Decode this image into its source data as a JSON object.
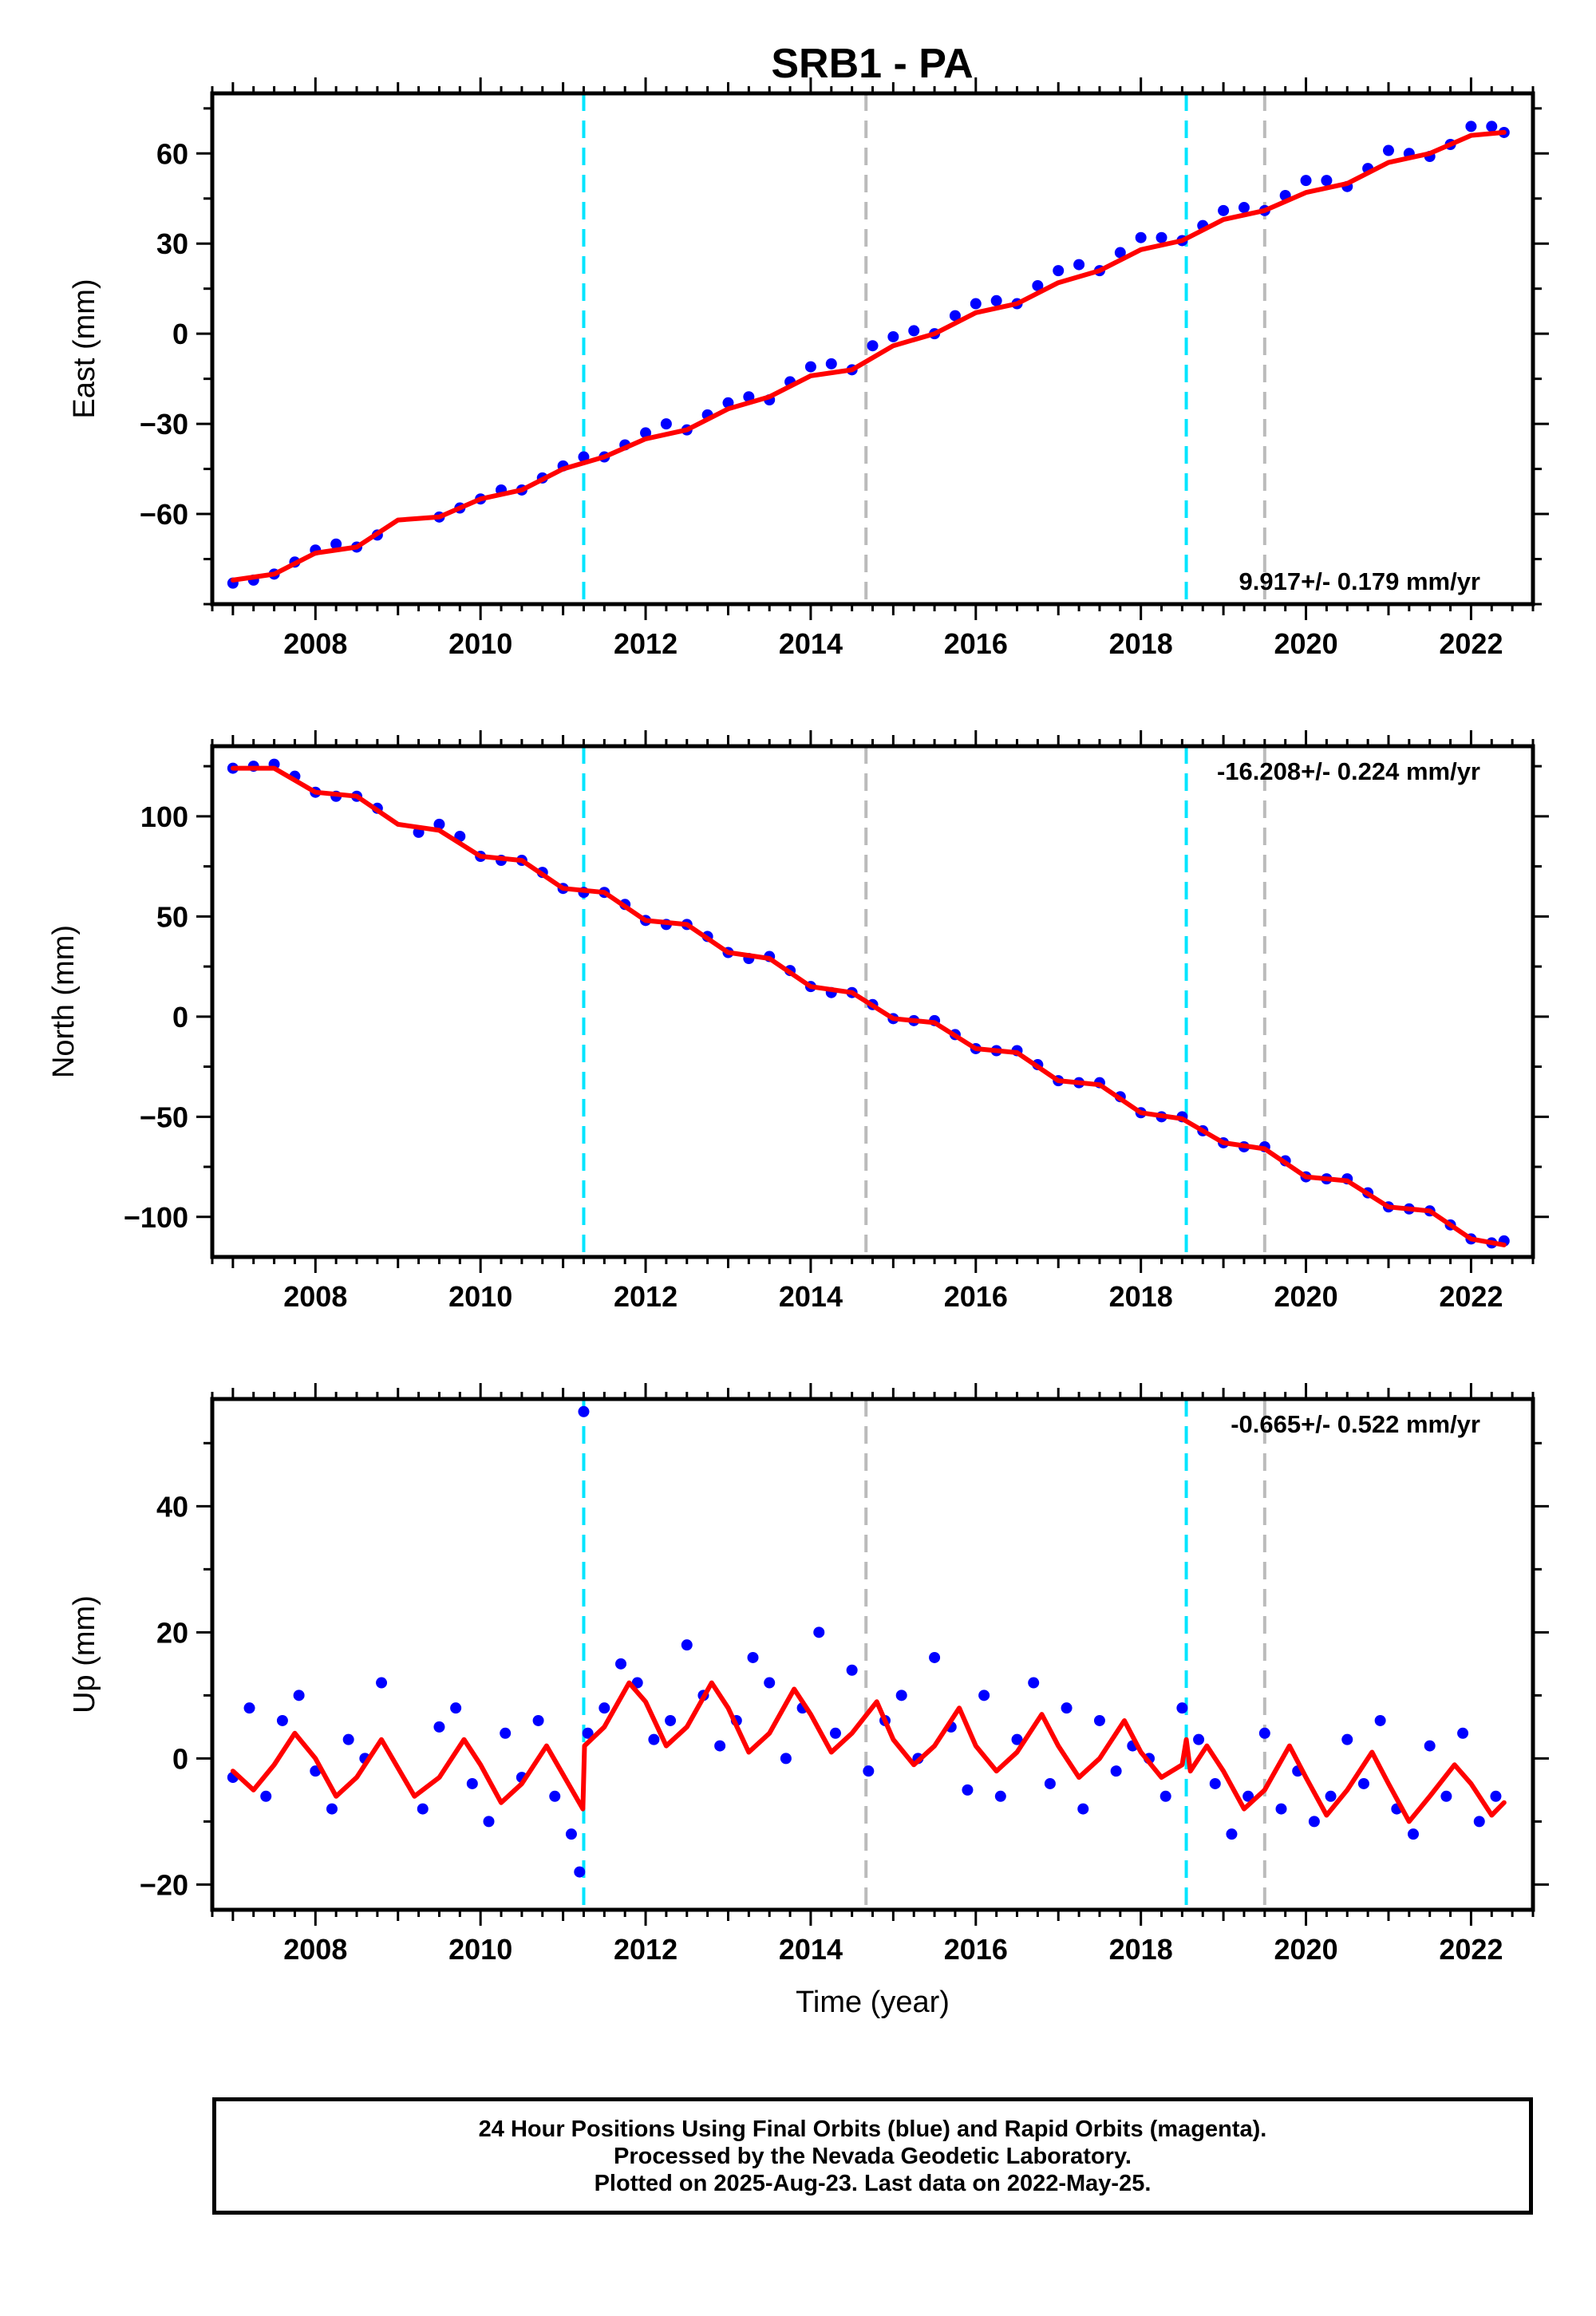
{
  "title": "SRB1 - PA",
  "footer": {
    "line1": "24 Hour Positions Using Final Orbits (blue) and Rapid Orbits (magenta).",
    "line2": "Processed by the Nevada Geodetic Laboratory.",
    "line3": "Plotted on 2025-Aug-23. Last data on 2022-May-25."
  },
  "colors": {
    "points": "#0000ff",
    "fit": "#ff0000",
    "cyan_line": "#00e5ff",
    "gray_line": "#bbbbbb"
  },
  "chart_data": [
    {
      "type": "scatter",
      "ylabel": "East (mm)",
      "xlabel": "",
      "xlim": [
        2006.75,
        2022.75
      ],
      "ylim": [
        -90,
        80
      ],
      "xticks": [
        2008,
        2010,
        2012,
        2014,
        2016,
        2018,
        2020,
        2022
      ],
      "xtick_labels": [
        "2008",
        "2010",
        "2012",
        "2014",
        "2016",
        "2018",
        "2020",
        "2022"
      ],
      "yticks": [
        -60,
        -30,
        0,
        30,
        60
      ],
      "ytick_labels": [
        "−60",
        "−30",
        "0",
        "30",
        "60"
      ],
      "rate_label": "9.917+/- 0.179 mm/yr",
      "rate_position": "bottom-right",
      "vlines_cyan": [
        2011.25,
        2018.55
      ],
      "vlines_gray": [
        2014.67,
        2019.5
      ],
      "fit": {
        "x": [
          2007.0,
          2007.5,
          2008.0,
          2008.5,
          2009.0,
          2009.5,
          2010.0,
          2010.5,
          2011.0,
          2011.5,
          2012.0,
          2012.5,
          2013.0,
          2013.5,
          2014.0,
          2014.5,
          2015.0,
          2015.5,
          2016.0,
          2016.5,
          2017.0,
          2017.5,
          2018.0,
          2018.5,
          2019.0,
          2019.5,
          2020.0,
          2020.5,
          2021.0,
          2021.5,
          2022.0,
          2022.4
        ],
        "y": [
          -82,
          -80,
          -73,
          -71,
          -62,
          -61,
          -55,
          -52,
          -45,
          -41,
          -35,
          -32,
          -25,
          -21,
          -14,
          -12,
          -4,
          0,
          7,
          10,
          17,
          21,
          28,
          31,
          38,
          41,
          47,
          50,
          57,
          60,
          66,
          67
        ]
      },
      "points": {
        "x": [
          2007.0,
          2007.25,
          2007.5,
          2007.75,
          2008.0,
          2008.25,
          2008.5,
          2008.75,
          2009.5,
          2009.75,
          2010.0,
          2010.25,
          2010.5,
          2010.75,
          2011.0,
          2011.25,
          2011.5,
          2011.75,
          2012.0,
          2012.25,
          2012.5,
          2012.75,
          2013.0,
          2013.25,
          2013.5,
          2013.75,
          2014.0,
          2014.25,
          2014.5,
          2014.75,
          2015.0,
          2015.25,
          2015.5,
          2015.75,
          2016.0,
          2016.25,
          2016.5,
          2016.75,
          2017.0,
          2017.25,
          2017.5,
          2017.75,
          2018.0,
          2018.25,
          2018.5,
          2018.75,
          2019.0,
          2019.25,
          2019.5,
          2019.75,
          2020.0,
          2020.25,
          2020.5,
          2020.75,
          2021.0,
          2021.25,
          2021.5,
          2021.75,
          2022.0,
          2022.25,
          2022.4
        ],
        "y": [
          -83,
          -82,
          -80,
          -76,
          -72,
          -70,
          -71,
          -67,
          -61,
          -58,
          -55,
          -52,
          -52,
          -48,
          -44,
          -41,
          -41,
          -37,
          -33,
          -30,
          -32,
          -27,
          -23,
          -21,
          -22,
          -16,
          -11,
          -10,
          -12,
          -4,
          -1,
          1,
          0,
          6,
          10,
          11,
          10,
          16,
          21,
          23,
          21,
          27,
          32,
          32,
          31,
          36,
          41,
          42,
          41,
          46,
          51,
          51,
          49,
          55,
          61,
          60,
          59,
          63,
          69,
          69,
          67
        ]
      }
    },
    {
      "type": "scatter",
      "ylabel": "North (mm)",
      "xlabel": "",
      "xlim": [
        2006.75,
        2022.75
      ],
      "ylim": [
        -120,
        135
      ],
      "xticks": [
        2008,
        2010,
        2012,
        2014,
        2016,
        2018,
        2020,
        2022
      ],
      "xtick_labels": [
        "2008",
        "2010",
        "2012",
        "2014",
        "2016",
        "2018",
        "2020",
        "2022"
      ],
      "yticks": [
        -100,
        -50,
        0,
        50,
        100
      ],
      "ytick_labels": [
        "−100",
        "−50",
        "0",
        "50",
        "100"
      ],
      "rate_label": "-16.208+/- 0.224 mm/yr",
      "rate_position": "top-right",
      "vlines_cyan": [
        2011.25,
        2018.55
      ],
      "vlines_gray": [
        2014.67,
        2019.5
      ],
      "fit": {
        "x": [
          2007.0,
          2007.5,
          2008.0,
          2008.5,
          2009.0,
          2009.5,
          2010.0,
          2010.5,
          2011.0,
          2011.5,
          2012.0,
          2012.5,
          2013.0,
          2013.5,
          2014.0,
          2014.5,
          2015.0,
          2015.5,
          2016.0,
          2016.5,
          2017.0,
          2017.5,
          2018.0,
          2018.5,
          2019.0,
          2019.5,
          2020.0,
          2020.5,
          2021.0,
          2021.5,
          2022.0,
          2022.4
        ],
        "y": [
          124,
          124,
          112,
          110,
          96,
          93,
          80,
          78,
          64,
          62,
          48,
          46,
          32,
          29,
          15,
          12,
          -1,
          -3,
          -16,
          -18,
          -32,
          -34,
          -48,
          -51,
          -63,
          -66,
          -80,
          -82,
          -95,
          -97,
          -111,
          -114
        ]
      },
      "points": {
        "x": [
          2007.0,
          2007.25,
          2007.5,
          2007.75,
          2008.0,
          2008.25,
          2008.5,
          2008.75,
          2009.25,
          2009.5,
          2009.75,
          2010.0,
          2010.25,
          2010.5,
          2010.75,
          2011.0,
          2011.25,
          2011.5,
          2011.75,
          2012.0,
          2012.25,
          2012.5,
          2012.75,
          2013.0,
          2013.25,
          2013.5,
          2013.75,
          2014.0,
          2014.25,
          2014.5,
          2014.75,
          2015.0,
          2015.25,
          2015.5,
          2015.75,
          2016.0,
          2016.25,
          2016.5,
          2016.75,
          2017.0,
          2017.25,
          2017.5,
          2017.75,
          2018.0,
          2018.25,
          2018.5,
          2018.75,
          2019.0,
          2019.25,
          2019.5,
          2019.75,
          2020.0,
          2020.25,
          2020.5,
          2020.75,
          2021.0,
          2021.25,
          2021.5,
          2021.75,
          2022.0,
          2022.25,
          2022.4
        ],
        "y": [
          124,
          125,
          126,
          120,
          112,
          110,
          110,
          104,
          92,
          96,
          90,
          80,
          78,
          78,
          72,
          64,
          62,
          62,
          56,
          48,
          46,
          46,
          40,
          32,
          29,
          30,
          23,
          15,
          12,
          12,
          6,
          -1,
          -2,
          -2,
          -9,
          -16,
          -17,
          -17,
          -24,
          -32,
          -33,
          -33,
          -40,
          -48,
          -50,
          -50,
          -57,
          -63,
          -65,
          -65,
          -72,
          -80,
          -81,
          -81,
          -88,
          -95,
          -96,
          -97,
          -104,
          -111,
          -113,
          -112
        ]
      }
    },
    {
      "type": "scatter",
      "ylabel": "Up (mm)",
      "xlabel": "Time (year)",
      "xlim": [
        2006.75,
        2022.75
      ],
      "ylim": [
        -24,
        57
      ],
      "xticks": [
        2008,
        2010,
        2012,
        2014,
        2016,
        2018,
        2020,
        2022
      ],
      "xtick_labels": [
        "2008",
        "2010",
        "2012",
        "2014",
        "2016",
        "2018",
        "2020",
        "2022"
      ],
      "yticks": [
        -20,
        0,
        20,
        40
      ],
      "ytick_labels": [
        "−20",
        "0",
        "20",
        "40"
      ],
      "rate_label": "-0.665+/- 0.522 mm/yr",
      "rate_position": "top-right",
      "vlines_cyan": [
        2011.25,
        2018.55
      ],
      "vlines_gray": [
        2014.67,
        2019.5
      ],
      "fit": {
        "x": [
          2007.0,
          2007.25,
          2007.5,
          2007.75,
          2008.0,
          2008.25,
          2008.5,
          2008.8,
          2009.2,
          2009.5,
          2009.8,
          2010.0,
          2010.25,
          2010.5,
          2010.8,
          2011.24,
          2011.26,
          2011.5,
          2011.8,
          2012.0,
          2012.25,
          2012.5,
          2012.8,
          2013.0,
          2013.25,
          2013.5,
          2013.8,
          2014.0,
          2014.25,
          2014.5,
          2014.8,
          2015.0,
          2015.25,
          2015.5,
          2015.8,
          2016.0,
          2016.25,
          2016.5,
          2016.8,
          2017.0,
          2017.25,
          2017.5,
          2017.8,
          2018.0,
          2018.25,
          2018.5,
          2018.55,
          2018.6,
          2018.8,
          2019.0,
          2019.25,
          2019.5,
          2019.8,
          2020.0,
          2020.25,
          2020.5,
          2020.8,
          2021.0,
          2021.25,
          2021.5,
          2021.8,
          2022.0,
          2022.25,
          2022.4
        ],
        "y": [
          -2,
          -5,
          -1,
          4,
          0,
          -6,
          -3,
          3,
          -6,
          -3,
          3,
          -1,
          -7,
          -4,
          2,
          -8,
          2,
          5,
          12,
          9,
          2,
          5,
          12,
          8,
          1,
          4,
          11,
          7,
          1,
          4,
          9,
          3,
          -1,
          2,
          8,
          2,
          -2,
          1,
          7,
          2,
          -3,
          0,
          6,
          1,
          -3,
          -1,
          3,
          -2,
          2,
          -2,
          -8,
          -5,
          2,
          -3,
          -9,
          -5,
          1,
          -4,
          -10,
          -6,
          -1,
          -4,
          -9,
          -7
        ]
      },
      "points": {
        "x": [
          2007.0,
          2007.2,
          2007.4,
          2007.6,
          2007.8,
          2008.0,
          2008.2,
          2008.4,
          2008.6,
          2008.8,
          2009.3,
          2009.5,
          2009.7,
          2009.9,
          2010.1,
          2010.3,
          2010.5,
          2010.7,
          2010.9,
          2011.1,
          2011.2,
          2011.25,
          2011.3,
          2011.5,
          2011.7,
          2011.9,
          2012.1,
          2012.3,
          2012.5,
          2012.7,
          2012.9,
          2013.1,
          2013.3,
          2013.5,
          2013.7,
          2013.9,
          2014.1,
          2014.3,
          2014.5,
          2014.7,
          2014.9,
          2015.1,
          2015.3,
          2015.5,
          2015.7,
          2015.9,
          2016.1,
          2016.3,
          2016.5,
          2016.7,
          2016.9,
          2017.1,
          2017.3,
          2017.5,
          2017.7,
          2017.9,
          2018.1,
          2018.3,
          2018.5,
          2018.7,
          2018.9,
          2019.1,
          2019.3,
          2019.5,
          2019.7,
          2019.9,
          2020.1,
          2020.3,
          2020.5,
          2020.7,
          2020.9,
          2021.1,
          2021.3,
          2021.5,
          2021.7,
          2021.9,
          2022.1,
          2022.3
        ],
        "y": [
          -3,
          8,
          -6,
          6,
          10,
          -2,
          -8,
          3,
          0,
          12,
          -8,
          5,
          8,
          -4,
          -10,
          4,
          -3,
          6,
          -6,
          -12,
          -18,
          55,
          4,
          8,
          15,
          12,
          3,
          6,
          18,
          10,
          2,
          6,
          16,
          12,
          0,
          8,
          20,
          4,
          14,
          -2,
          6,
          10,
          0,
          16,
          5,
          -5,
          10,
          -6,
          3,
          12,
          -4,
          8,
          -8,
          6,
          -2,
          2,
          0,
          -6,
          8,
          3,
          -4,
          -12,
          -6,
          4,
          -8,
          -2,
          -10,
          -6,
          3,
          -4,
          6,
          -8,
          -12,
          2,
          -6,
          4,
          -10,
          -6
        ]
      }
    }
  ]
}
